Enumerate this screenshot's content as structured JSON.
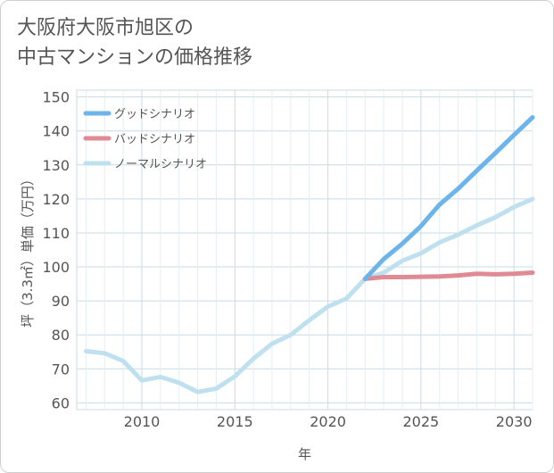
{
  "title": {
    "line1": "大阪府大阪市旭区の",
    "line2": "中古マンションの価格推移"
  },
  "chart_data": {
    "type": "line",
    "title": "大阪府大阪市旭区の中古マンションの価格推移",
    "xlabel": "年",
    "ylabel": "坪（3.3㎡）単価（万円）",
    "xlim": [
      2006.5,
      2031
    ],
    "ylim": [
      58,
      152
    ],
    "xticks": [
      2010,
      2015,
      2020,
      2025,
      2030
    ],
    "yticks": [
      60,
      70,
      80,
      90,
      100,
      110,
      120,
      130,
      140,
      150
    ],
    "grid": true,
    "legend": "top-left",
    "series": [
      {
        "name": "グッドシナリオ",
        "color": "#6cb4ea",
        "x": [
          2022,
          2023,
          2024,
          2025,
          2026,
          2027,
          2028,
          2029,
          2030,
          2031
        ],
        "y": [
          96.5,
          102.3,
          106.8,
          112.0,
          118.3,
          123.0,
          128.3,
          133.5,
          138.8,
          144.0
        ]
      },
      {
        "name": "バッドシナリオ",
        "color": "#e08a94",
        "x": [
          2022,
          2023,
          2024,
          2025,
          2026,
          2027,
          2028,
          2029,
          2030,
          2031
        ],
        "y": [
          96.5,
          97.0,
          97.0,
          97.1,
          97.2,
          97.5,
          98.0,
          97.8,
          98.0,
          98.3
        ]
      },
      {
        "name": "ノーマルシナリオ",
        "color": "#bfe0ee",
        "x": [
          2007,
          2008,
          2009,
          2010,
          2011,
          2012,
          2013,
          2014,
          2015,
          2016,
          2017,
          2018,
          2019,
          2020,
          2021,
          2022,
          2023,
          2024,
          2025,
          2026,
          2027,
          2028,
          2029,
          2030,
          2031
        ],
        "y": [
          75.2,
          74.6,
          72.3,
          66.6,
          67.6,
          65.9,
          63.2,
          64.2,
          67.8,
          73.0,
          77.4,
          80.0,
          84.3,
          88.3,
          90.7,
          96.5,
          98.3,
          101.8,
          104.0,
          107.2,
          109.5,
          112.2,
          114.6,
          117.6,
          120.0
        ]
      }
    ]
  }
}
